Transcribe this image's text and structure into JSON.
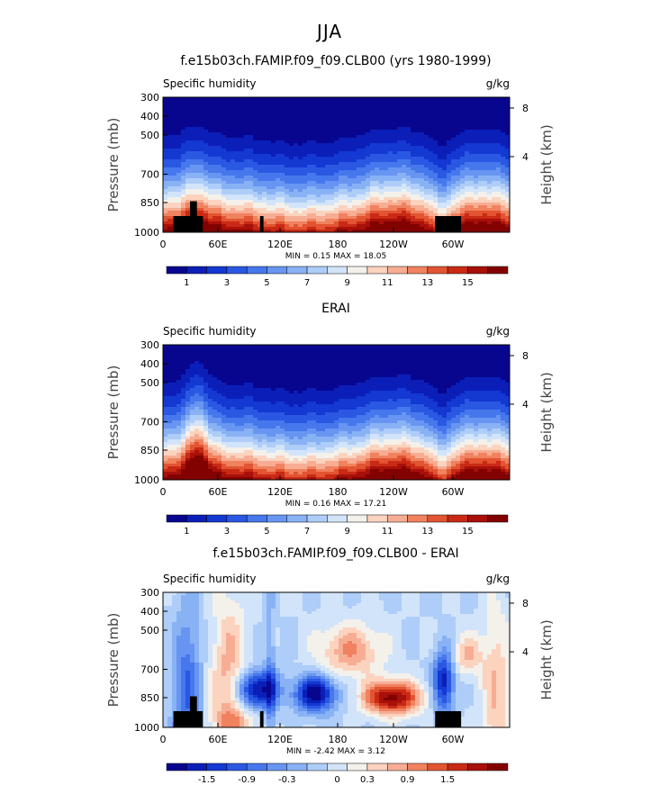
{
  "main_title": "JJA",
  "colors": {
    "palette": [
      "#08068f",
      "#0b1fb8",
      "#1438d2",
      "#2a58e2",
      "#4677ec",
      "#6795f1",
      "#89b2f5",
      "#aecdf8",
      "#d2e4fa",
      "#f4f0ea",
      "#fbd3bf",
      "#f7ad93",
      "#f0825f",
      "#e25432",
      "#c92a15",
      "#a8100a",
      "#820200"
    ],
    "land": "#000000"
  },
  "chart_data": [
    {
      "type": "heatmap",
      "title": "f.e15b03ch.FAMIP.f09_f09.CLB00 (yrs 1980-1999)",
      "left_label": "Specific humidity",
      "right_label": "g/kg",
      "ylabel": "Pressure (mb)",
      "y2label": "Height (km)",
      "x_ticks": [
        "0",
        "60E",
        "120E",
        "180",
        "120W",
        "60W"
      ],
      "y_ticks": [
        "300",
        "400",
        "500",
        "700",
        "850",
        "1000"
      ],
      "y2_ticks": [
        "8",
        "4"
      ],
      "stats": "MIN =    0.15   MAX =   18.05",
      "colorbar_labels": [
        "1",
        "3",
        "5",
        "7",
        "9",
        "11",
        "13",
        "15"
      ],
      "variant": "model"
    },
    {
      "type": "heatmap",
      "title": "ERAI",
      "left_label": "Specific humidity",
      "right_label": "g/kg",
      "ylabel": "Pressure (mb)",
      "y2label": "Height (km)",
      "x_ticks": [
        "0",
        "60E",
        "120E",
        "180",
        "120W",
        "60W"
      ],
      "y_ticks": [
        "300",
        "400",
        "500",
        "700",
        "850",
        "1000"
      ],
      "y2_ticks": [
        "8",
        "4"
      ],
      "stats": "MIN =    0.16   MAX =   17.21",
      "colorbar_labels": [
        "1",
        "3",
        "5",
        "7",
        "9",
        "11",
        "13",
        "15"
      ],
      "variant": "obs"
    },
    {
      "type": "heatmap",
      "title": "f.e15b03ch.FAMIP.f09_f09.CLB00 - ERAI",
      "left_label": "Specific humidity",
      "right_label": "g/kg",
      "ylabel": "Pressure (mb)",
      "y2label": "Height (km)",
      "x_ticks": [
        "0",
        "60E",
        "120E",
        "180",
        "120W",
        "60W"
      ],
      "y_ticks": [
        "300",
        "400",
        "500",
        "700",
        "850",
        "1000"
      ],
      "y2_ticks": [
        "8",
        "4"
      ],
      "stats": "MIN =   -2.42   MAX =    3.12",
      "colorbar_labels": [
        "-1.5",
        "-0.9",
        "-0.3",
        "0",
        "0.3",
        "0.9",
        "1.5"
      ],
      "variant": "diff"
    }
  ]
}
